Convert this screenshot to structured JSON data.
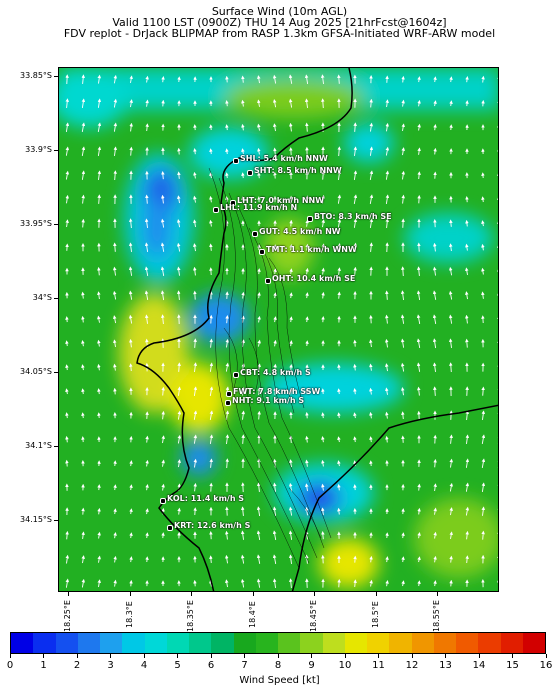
{
  "header": {
    "line1": "Surface Wind (10m AGL)",
    "line2": "Valid 1100 LST (0900Z) THU 14 Aug 2025 [21hrFcst@1604z]",
    "line3": "FDV replot - DrJack BLIPMAP from RASP 1.3km GFSA-Initiated WRF-ARW model"
  },
  "y_axis": [
    "33.85°S",
    "33.9°S",
    "33.95°S",
    "34°S",
    "34.05°S",
    "34.1°S",
    "34.15°S"
  ],
  "x_axis": [
    "18.25°E",
    "18.3°E",
    "18.35°E",
    "18.4°E",
    "18.45°E",
    "18.5°E",
    "18.55°E"
  ],
  "stations": [
    {
      "label": "SHL: 5.4 km/h NNW"
    },
    {
      "label": "SHT: 8.5 km/h NNW"
    },
    {
      "label": "LHT: 7.0 km/h NNW"
    },
    {
      "label": "LHL: 11.9 km/h N"
    },
    {
      "label": "BTO: 8.3 km/h SE"
    },
    {
      "label": "GUT: 4.5 km/h NW"
    },
    {
      "label": "TMT: 1.1 km/h WNW"
    },
    {
      "label": "OHT: 10.4 km/h SE"
    },
    {
      "label": "CBT: 4.8 km/h S"
    },
    {
      "label": "FWT: 7.8 km/h SSW"
    },
    {
      "label": "NHT: 9.1 km/h S"
    },
    {
      "label": "KOL: 11.4 km/h S"
    },
    {
      "label": "KRT: 12.6 km/h S"
    }
  ],
  "colorbar": {
    "title": "Wind Speed [kt]",
    "ticks": [
      "0",
      "1",
      "2",
      "3",
      "4",
      "5",
      "6",
      "7",
      "8",
      "9",
      "10",
      "11",
      "12",
      "13",
      "14",
      "15",
      "16"
    ],
    "colors": [
      "#0000e6",
      "#0a2ef0",
      "#1450f0",
      "#1e78ee",
      "#1ea0ee",
      "#00c8e6",
      "#00d8d8",
      "#00d8b4",
      "#00c88c",
      "#00b464",
      "#18a81e",
      "#28b41e",
      "#5ac31e",
      "#8cd21e",
      "#bede1e",
      "#e6e600",
      "#f0d200",
      "#f0b400",
      "#f09600",
      "#f07800",
      "#f05a00",
      "#eb3c00",
      "#e11e00",
      "#d20000"
    ]
  }
}
